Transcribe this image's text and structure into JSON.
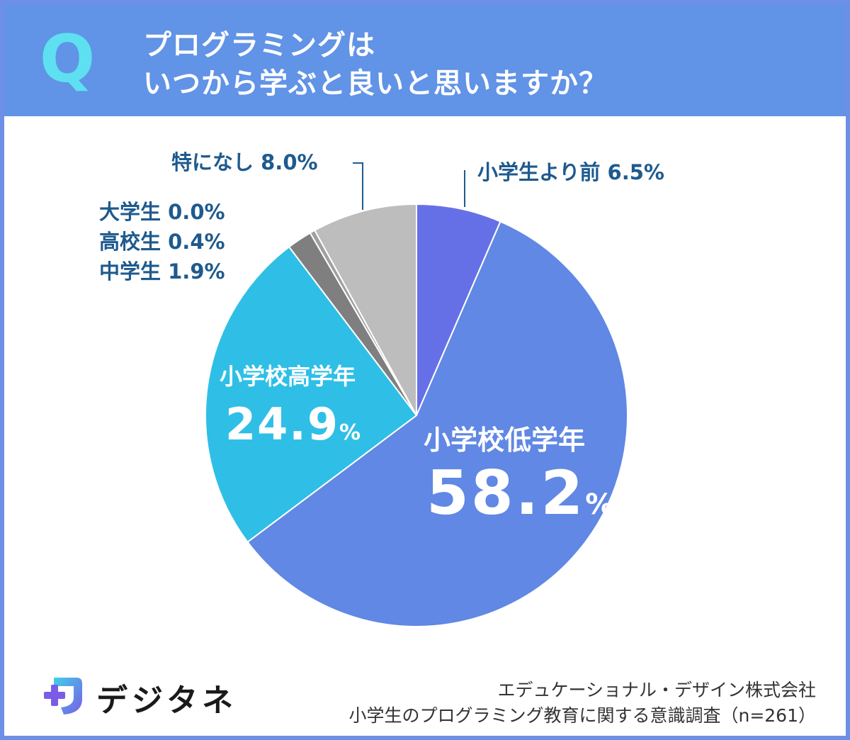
{
  "header": {
    "q_letter": "Q",
    "title_line1": "プログラミングは",
    "title_line2": "いつから学ぶと良いと思いますか？"
  },
  "chart_data": {
    "type": "pie",
    "title": "プログラミングはいつから学ぶと良いと思いますか？",
    "start": "top, clockwise",
    "slices": [
      {
        "key": "pre",
        "label": "小学生より前",
        "value": 6.5,
        "display": "6.5%",
        "color": "#6670e6"
      },
      {
        "key": "lower",
        "label": "小学校低学年",
        "value": 58.2,
        "display": "58.2",
        "color": "#6088e4"
      },
      {
        "key": "upper",
        "label": "小学校高学年",
        "value": 24.9,
        "display": "24.9",
        "color": "#2fbfe6"
      },
      {
        "key": "junior",
        "label": "中学生",
        "value": 1.9,
        "display": "1.9%",
        "color": "#7f7f7f"
      },
      {
        "key": "high",
        "label": "高校生",
        "value": 0.4,
        "display": "0.4%",
        "color": "#a0a0a0"
      },
      {
        "key": "univ",
        "label": "大学生",
        "value": 0.0,
        "display": "0.0%",
        "color": "#9a9a9a"
      },
      {
        "key": "none",
        "label": "特になし",
        "value": 8.0,
        "display": "8.0%",
        "color": "#bdbdbd"
      }
    ],
    "percent_sign": "%"
  },
  "footer": {
    "logo_name": "デジタネ",
    "company": "エデュケーショナル・デザイン株式会社",
    "survey": "小学生のプログラミング教育に関する意識調査（n=261）"
  }
}
